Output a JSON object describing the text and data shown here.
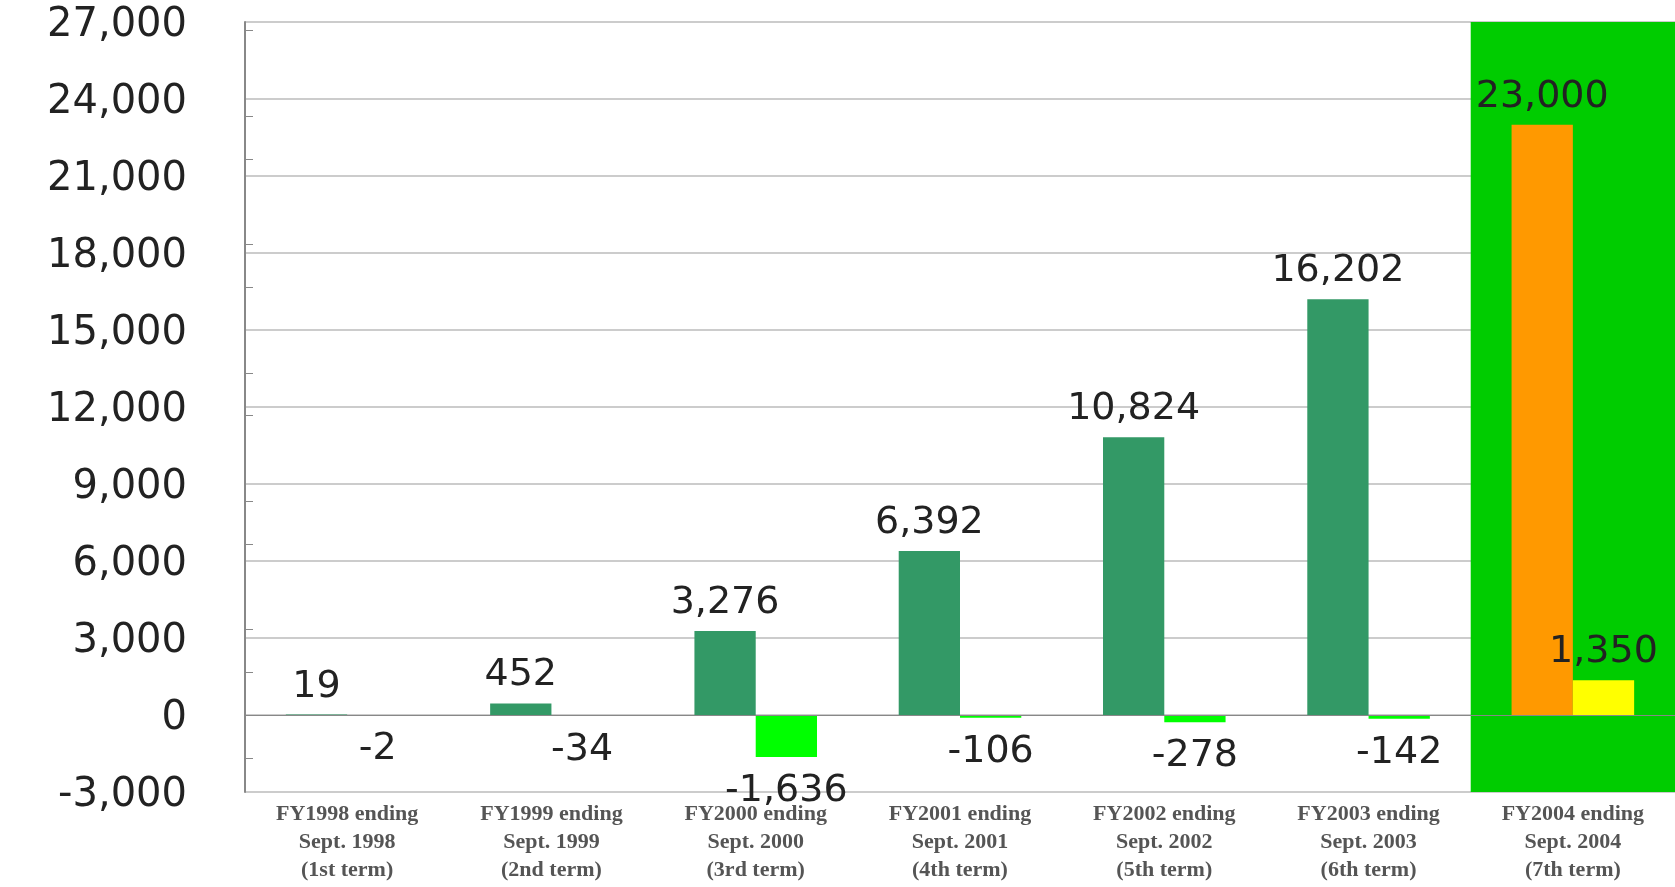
{
  "chart_data": {
    "type": "bar",
    "categories": [
      "FY1998 ending\nSept. 1998\n(1st term)",
      "FY1999 ending\nSept. 1999\n(2nd term)",
      "FY2000 ending\nSept. 2000\n(3rd term)",
      "FY2001 ending\nSept. 2001\n(4th term)",
      "FY2002 ending\nSept. 2002\n(5th term)",
      "FY2003 ending\nSept. 2003\n(6th term)",
      "FY2004 ending\nSept. 2004\n(7th term)"
    ],
    "series": [
      {
        "values": [
          19,
          452,
          3276,
          6392,
          10824,
          16202,
          23000
        ],
        "value_labels": [
          "19",
          "452",
          "3,276",
          "6,392",
          "10,824",
          "16,202",
          "23,000"
        ],
        "colors": [
          "#339966",
          "#339966",
          "#339966",
          "#339966",
          "#339966",
          "#339966",
          "#ff9900"
        ]
      },
      {
        "values": [
          -2,
          -34,
          -1636,
          -106,
          -278,
          -142,
          1350
        ],
        "value_labels": [
          "-2",
          "-34",
          "-1,636",
          "-106",
          "-278",
          "-142",
          "1,350"
        ],
        "colors": [
          "#00ff00",
          "#00ff00",
          "#00ff00",
          "#00ff00",
          "#00ff00",
          "#00ff00",
          "#ffff00"
        ]
      }
    ],
    "ylim": [
      -3000,
      27000
    ],
    "yticks": [
      {
        "value": -3000,
        "label": "-3,000"
      },
      0,
      {
        "value": 3000,
        "label": "3,000"
      },
      {
        "value": 6000,
        "label": "6,000"
      },
      {
        "value": 9000,
        "label": "9,000"
      },
      {
        "value": 12000,
        "label": "12,000"
      },
      {
        "value": 15000,
        "label": "15,000"
      },
      {
        "value": 18000,
        "label": "18,000"
      },
      {
        "value": 21000,
        "label": "21,000"
      },
      {
        "value": 24000,
        "label": "24,000"
      },
      {
        "value": 27000,
        "label": "27,000"
      }
    ],
    "grid": "y",
    "bands": [
      {
        "axis": "x",
        "from": "FY2004 ending\nSept. 2004\n(7th term)",
        "to": "FY2004 ending\nSept. 2004\n(7th term)",
        "color": "#00cc00"
      }
    ]
  }
}
